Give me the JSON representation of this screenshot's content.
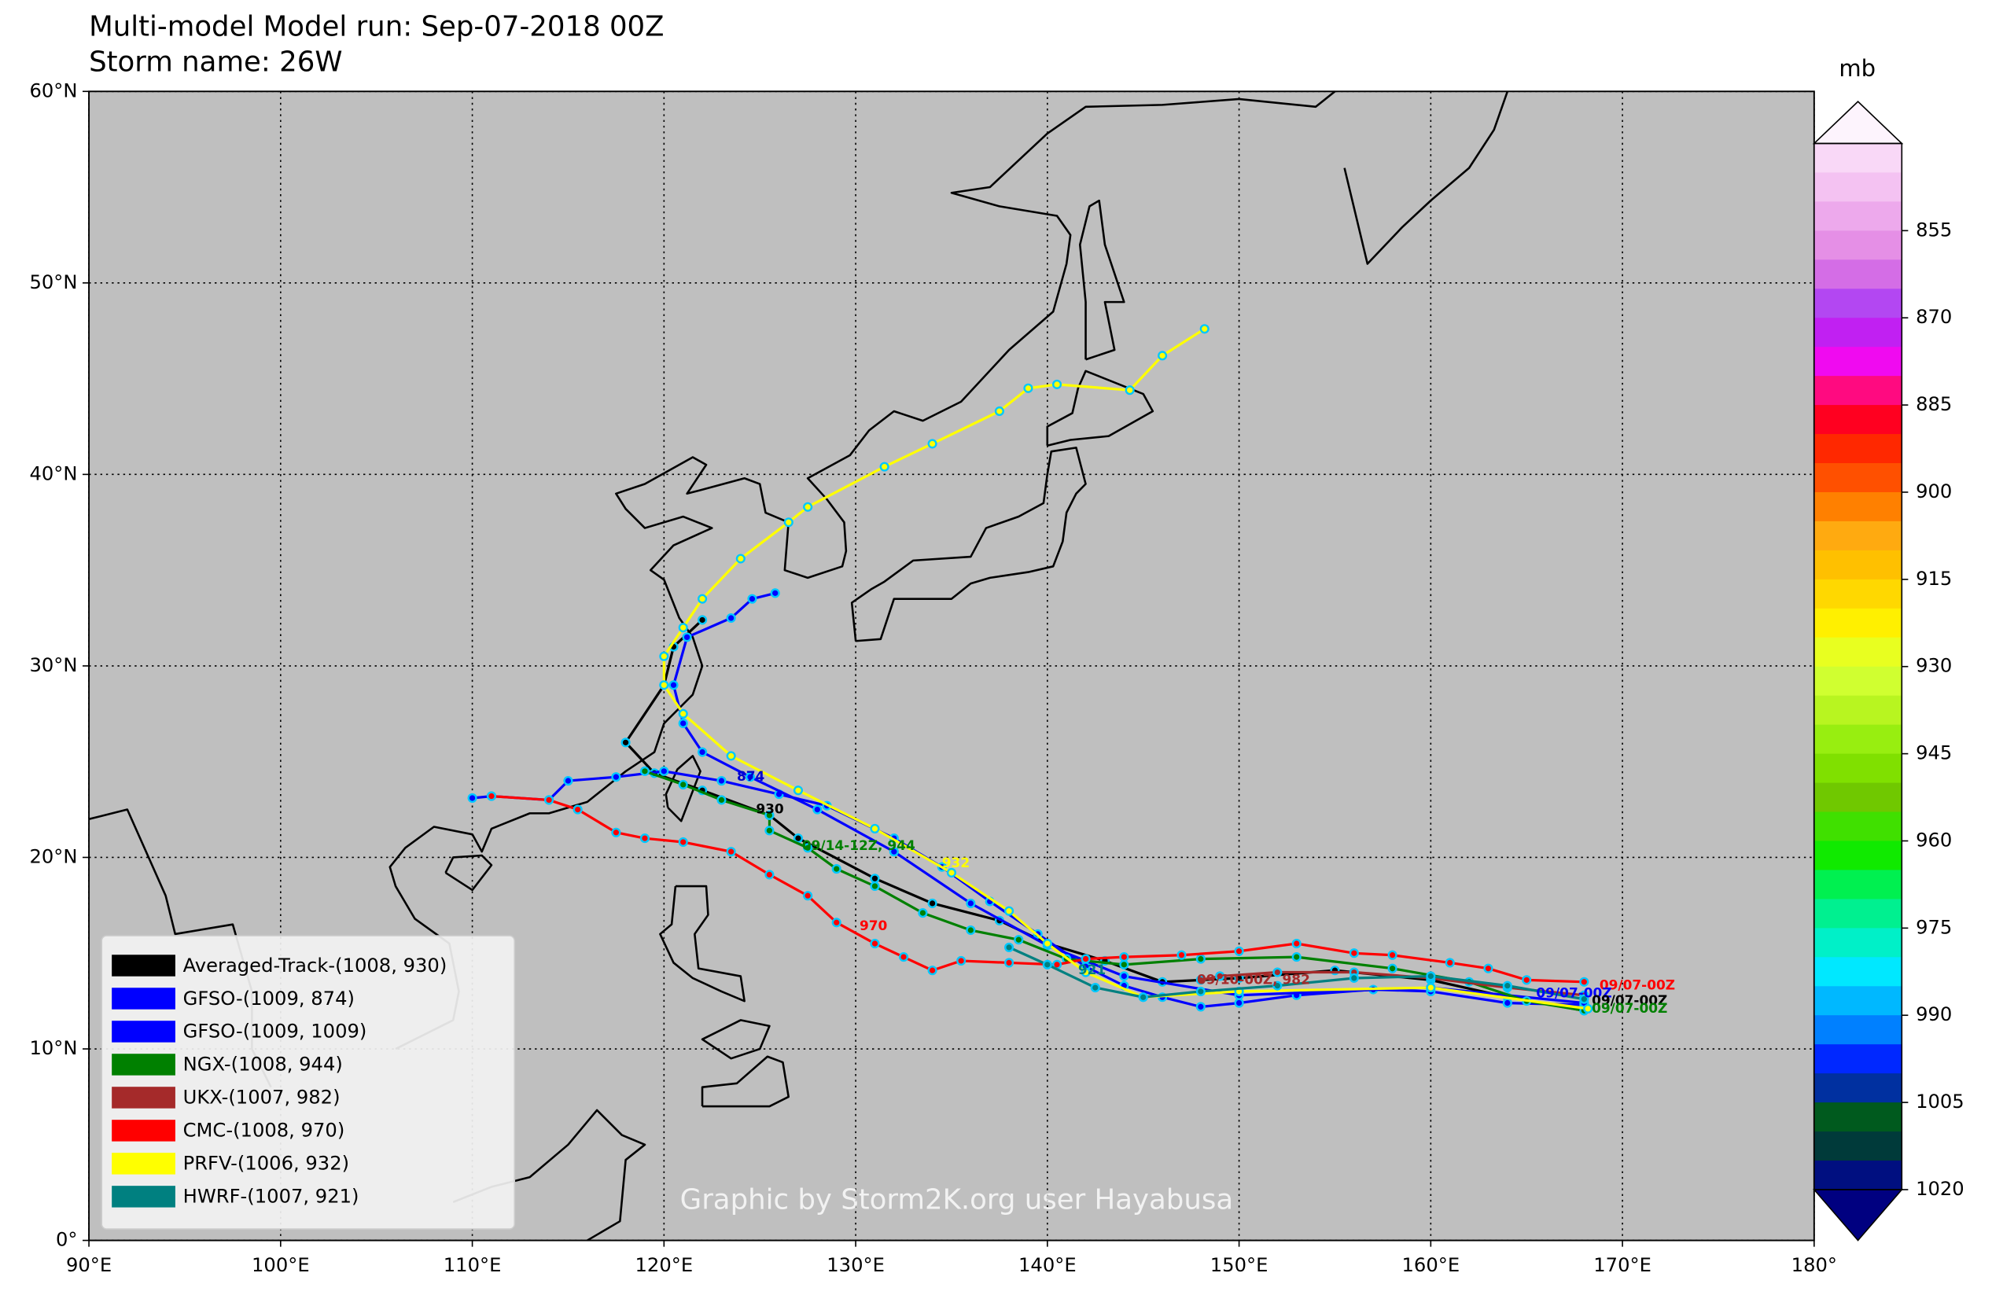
{
  "title": "Multi-model Model run: Sep-07-2018 00Z",
  "subtitle": "Storm name: 26W",
  "map": {
    "xlim": [
      90,
      180
    ],
    "ylim": [
      0,
      60
    ],
    "grid": true,
    "xticks": [
      {
        "value": 90,
        "label": "90°E"
      },
      {
        "value": 100,
        "label": "100°E"
      },
      {
        "value": 110,
        "label": "110°E"
      },
      {
        "value": 120,
        "label": "120°E"
      },
      {
        "value": 130,
        "label": "130°E"
      },
      {
        "value": 140,
        "label": "140°E"
      },
      {
        "value": 150,
        "label": "150°E"
      },
      {
        "value": 160,
        "label": "160°E"
      },
      {
        "value": 170,
        "label": "170°E"
      },
      {
        "value": 180,
        "label": "180°"
      }
    ],
    "yticks": [
      {
        "value": 0,
        "label": "0°"
      },
      {
        "value": 10,
        "label": "10°N"
      },
      {
        "value": 20,
        "label": "20°N"
      },
      {
        "value": 30,
        "label": "30°N"
      },
      {
        "value": 40,
        "label": "40°N"
      },
      {
        "value": 50,
        "label": "50°N"
      },
      {
        "value": 60,
        "label": "60°N"
      }
    ],
    "tracks": [
      {
        "name": "Averaged-Track-(1008, 930)",
        "color": "#000000",
        "lon": [
          168,
          164,
          160,
          155,
          150,
          146,
          143,
          140,
          137.5,
          134,
          131,
          127,
          125.5,
          122,
          119.5,
          118,
          120,
          120.5,
          122
        ],
        "lat": [
          12.0,
          12.7,
          13.6,
          14.1,
          13.7,
          13.5,
          14.6,
          15.5,
          16.7,
          17.6,
          18.9,
          21.0,
          22.2,
          23.5,
          24.4,
          26.0,
          29.0,
          31.0,
          32.4
        ]
      },
      {
        "name": "GFSO-(1009, 874)",
        "color": "#0000ff",
        "lon": [
          168,
          164,
          160,
          157,
          153,
          150,
          148,
          146,
          144,
          142,
          139.5,
          137,
          134.5,
          132,
          128.5,
          126,
          123,
          120,
          117.5,
          115,
          114,
          111,
          110
        ],
        "lat": [
          12.3,
          12.4,
          13.0,
          13.1,
          12.8,
          12.4,
          12.2,
          12.7,
          13.3,
          14.3,
          16.0,
          17.7,
          19.5,
          21.0,
          22.7,
          23.3,
          24.0,
          24.5,
          24.2,
          24.0,
          23.0,
          23.2,
          23.1
        ]
      },
      {
        "name": "GFSO-(1009, 1009)",
        "color": "#0000ff",
        "lon": [
          168,
          160,
          150,
          144,
          140,
          136,
          132,
          128,
          124.5,
          122,
          121,
          120.5,
          121.2,
          123.5,
          124.6,
          125.8
        ],
        "lat": [
          12.4,
          13.2,
          12.8,
          13.8,
          15.4,
          17.6,
          20.3,
          22.5,
          24.2,
          25.5,
          27.0,
          29.0,
          31.5,
          32.5,
          33.5,
          33.8
        ]
      },
      {
        "name": "NGX-(1008, 944)",
        "color": "#008000",
        "lon": [
          168,
          165,
          162,
          158,
          153,
          148,
          144,
          141,
          138.5,
          136,
          133.5,
          131,
          129,
          127.5,
          125.5,
          125.5,
          123,
          121,
          119
        ],
        "lat": [
          12.0,
          12.5,
          13.5,
          14.2,
          14.8,
          14.7,
          14.4,
          14.7,
          15.7,
          16.2,
          17.1,
          18.5,
          19.4,
          20.5,
          21.4,
          22.2,
          23.0,
          23.8,
          24.5
        ]
      },
      {
        "name": "UKX-(1007, 982)",
        "color": "#a52a2a",
        "lon": [
          168,
          164,
          160,
          156,
          152,
          149,
          148
        ],
        "lat": [
          12.8,
          13.2,
          13.7,
          14.0,
          14.0,
          13.8,
          13.6
        ]
      },
      {
        "name": "CMC-(1008, 970)",
        "color": "#ff0000",
        "lon": [
          168,
          165,
          163,
          161,
          158,
          156,
          153,
          150,
          147,
          144,
          142,
          140.5,
          138,
          135.5,
          134,
          132.5,
          131,
          129,
          127.5,
          125.5,
          123.5,
          121,
          119,
          117.5,
          115.5,
          114,
          111
        ],
        "lat": [
          13.5,
          13.6,
          14.2,
          14.5,
          14.9,
          15.0,
          15.5,
          15.1,
          14.9,
          14.8,
          14.7,
          14.4,
          14.5,
          14.6,
          14.1,
          14.8,
          15.5,
          16.6,
          18.0,
          19.1,
          20.3,
          20.8,
          21.0,
          21.3,
          22.5,
          23.0,
          23.2
        ]
      },
      {
        "name": "PRFV-(1006, 932)",
        "color": "#ffff00",
        "lon": [
          168.2,
          160,
          150,
          145,
          142,
          140,
          138,
          135,
          131,
          127,
          123.5,
          121,
          120,
          120,
          121,
          122,
          124,
          126.5,
          127.5,
          131.5,
          134,
          137.5,
          139,
          140.5,
          144.3,
          146,
          148.2
        ],
        "lat": [
          12.1,
          13.2,
          13.0,
          12.7,
          14.0,
          15.5,
          17.2,
          19.2,
          21.5,
          23.5,
          25.3,
          27.5,
          29.0,
          30.5,
          32.0,
          33.5,
          35.6,
          37.5,
          38.3,
          40.4,
          41.6,
          43.3,
          44.5,
          44.7,
          44.4,
          46.2,
          47.6
        ]
      },
      {
        "name": "HWRF-(1007, 921)",
        "color": "#008080",
        "lon": [
          168,
          164,
          160,
          156,
          152,
          148,
          145,
          142.5,
          140,
          138
        ],
        "lat": [
          12.6,
          13.3,
          13.8,
          13.7,
          13.3,
          13.0,
          12.7,
          13.2,
          14.4,
          15.3
        ]
      }
    ],
    "annotations": [
      {
        "text": "874",
        "color": "#0000cc"
      },
      {
        "text": "930",
        "color": "#000000"
      },
      {
        "text": "09/14-12Z, 944",
        "color": "#008000"
      },
      {
        "text": "932",
        "color": "#ffff00"
      },
      {
        "text": "970",
        "color": "#ff0000"
      },
      {
        "text": "921",
        "color": "#008080"
      },
      {
        "text": "09/10-00Z, 982",
        "color": "#a52a2a"
      },
      {
        "text": "09/07-00Z",
        "color": "#ff0000"
      },
      {
        "text": "09/07-00Z",
        "color": "#0000ff"
      },
      {
        "text": "09/07-00Z",
        "color": "#000000"
      },
      {
        "text": "09/07-00Z",
        "color": "#008000"
      }
    ]
  },
  "colorbar": {
    "unit": "mb",
    "clim": [
      840,
      1020
    ],
    "ticks": [
      855,
      870,
      885,
      900,
      915,
      930,
      945,
      960,
      975,
      990,
      1005,
      1020
    ],
    "colors": [
      "#f9d8f7",
      "#f4c2f2",
      "#eda9ec",
      "#e58fe6",
      "#d46de6",
      "#b347f2",
      "#c120f2",
      "#f00af0",
      "#ff0a80",
      "#ff0020",
      "#ff2800",
      "#ff5000",
      "#ff8000",
      "#ffaa10",
      "#ffc000",
      "#ffd800",
      "#fff000",
      "#e8ff20",
      "#d0ff30",
      "#b8f520",
      "#98ee10",
      "#80e000",
      "#70c800",
      "#40e000",
      "#10ea00",
      "#00f050",
      "#00f090",
      "#00f0c8",
      "#00e8ff",
      "#00b8ff",
      "#0080ff",
      "#0028ff",
      "#0030a0",
      "#005a1e",
      "#003a3a",
      "#000f80"
    ],
    "extend_colors": [
      "#fdf4fd",
      "#000080"
    ]
  },
  "credit": "Graphic by Storm2K.org user Hayabusa"
}
